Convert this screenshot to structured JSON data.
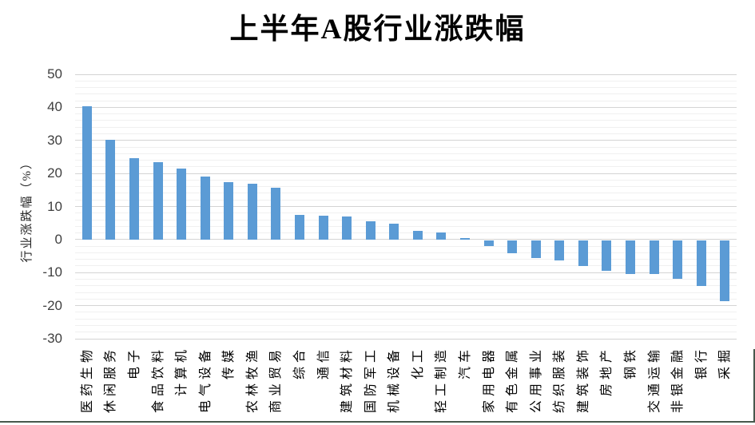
{
  "chart": {
    "title": "上半年A股行业涨跌幅",
    "ylabel": "行业涨跌幅（%）"
  },
  "chart_data": {
    "type": "bar",
    "title": "上半年A股行业涨跌幅",
    "xlabel": "",
    "ylabel": "行业涨跌幅（%）",
    "ylim": [
      -30,
      50
    ],
    "y_ticks": [
      50,
      40,
      30,
      20,
      10,
      0,
      -10,
      -20,
      -30
    ],
    "minor_grid_step": 2,
    "grid": true,
    "legend_position": "none",
    "bar_color": "#5B9BD5",
    "major_grid_color": "#D4D4D4",
    "minor_grid_color": "#F0F0F0",
    "categories": [
      "医药生物",
      "休闲服务",
      "电子",
      "食品饮料",
      "计算机",
      "电气设备",
      "传媒",
      "农林牧渔",
      "商业贸易",
      "综合",
      "通信",
      "建筑材料",
      "国防军工",
      "机械设备",
      "化工",
      "轻工制造",
      "汽车",
      "家用电器",
      "有色金属",
      "公用事业",
      "纺织服装",
      "建筑装饰",
      "房地产",
      "钢铁",
      "交通运输",
      "非银金融",
      "银行",
      "采掘"
    ],
    "values": [
      40.4,
      30.2,
      24.7,
      23.4,
      21.6,
      19.0,
      17.3,
      17.0,
      15.6,
      7.5,
      7.2,
      6.9,
      5.5,
      4.8,
      2.6,
      2.1,
      0.4,
      -1.8,
      -3.9,
      -5.4,
      -6.1,
      -7.7,
      -9.2,
      -10.1,
      -10.2,
      -11.6,
      -13.8,
      -18.4
    ]
  }
}
